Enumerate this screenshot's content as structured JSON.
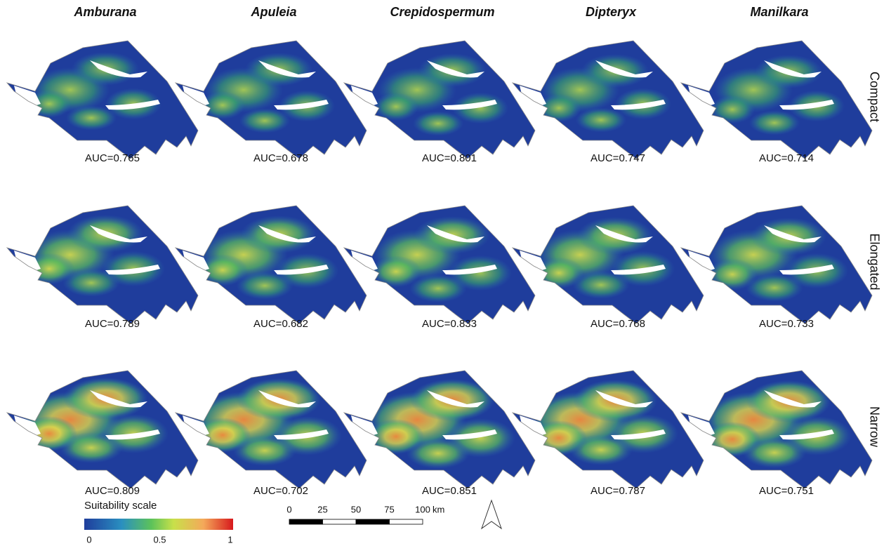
{
  "columns": [
    "Amburana",
    "Apuleia",
    "Crepidospermum",
    "Dipteryx",
    "Manilkara"
  ],
  "rows": [
    "Compact",
    "Elongated",
    "Narrow"
  ],
  "auc": [
    [
      "AUC=0.765",
      "AUC=0.678",
      "AUC=0.801",
      "AUC=0.747",
      "AUC=0.714"
    ],
    [
      "AUC=0.789",
      "AUC=0.682",
      "AUC=0.833",
      "AUC=0.768",
      "AUC=0.733"
    ],
    [
      "AUC=0.809",
      "AUC=0.702",
      "AUC=0.851",
      "AUC=0.787",
      "AUC=0.751"
    ]
  ],
  "legend": {
    "title": "Suitability scale",
    "ticks": [
      0,
      0.5,
      1
    ]
  },
  "scalebar": {
    "ticks": [
      0,
      25,
      50,
      75,
      100
    ],
    "unit": "km"
  }
}
